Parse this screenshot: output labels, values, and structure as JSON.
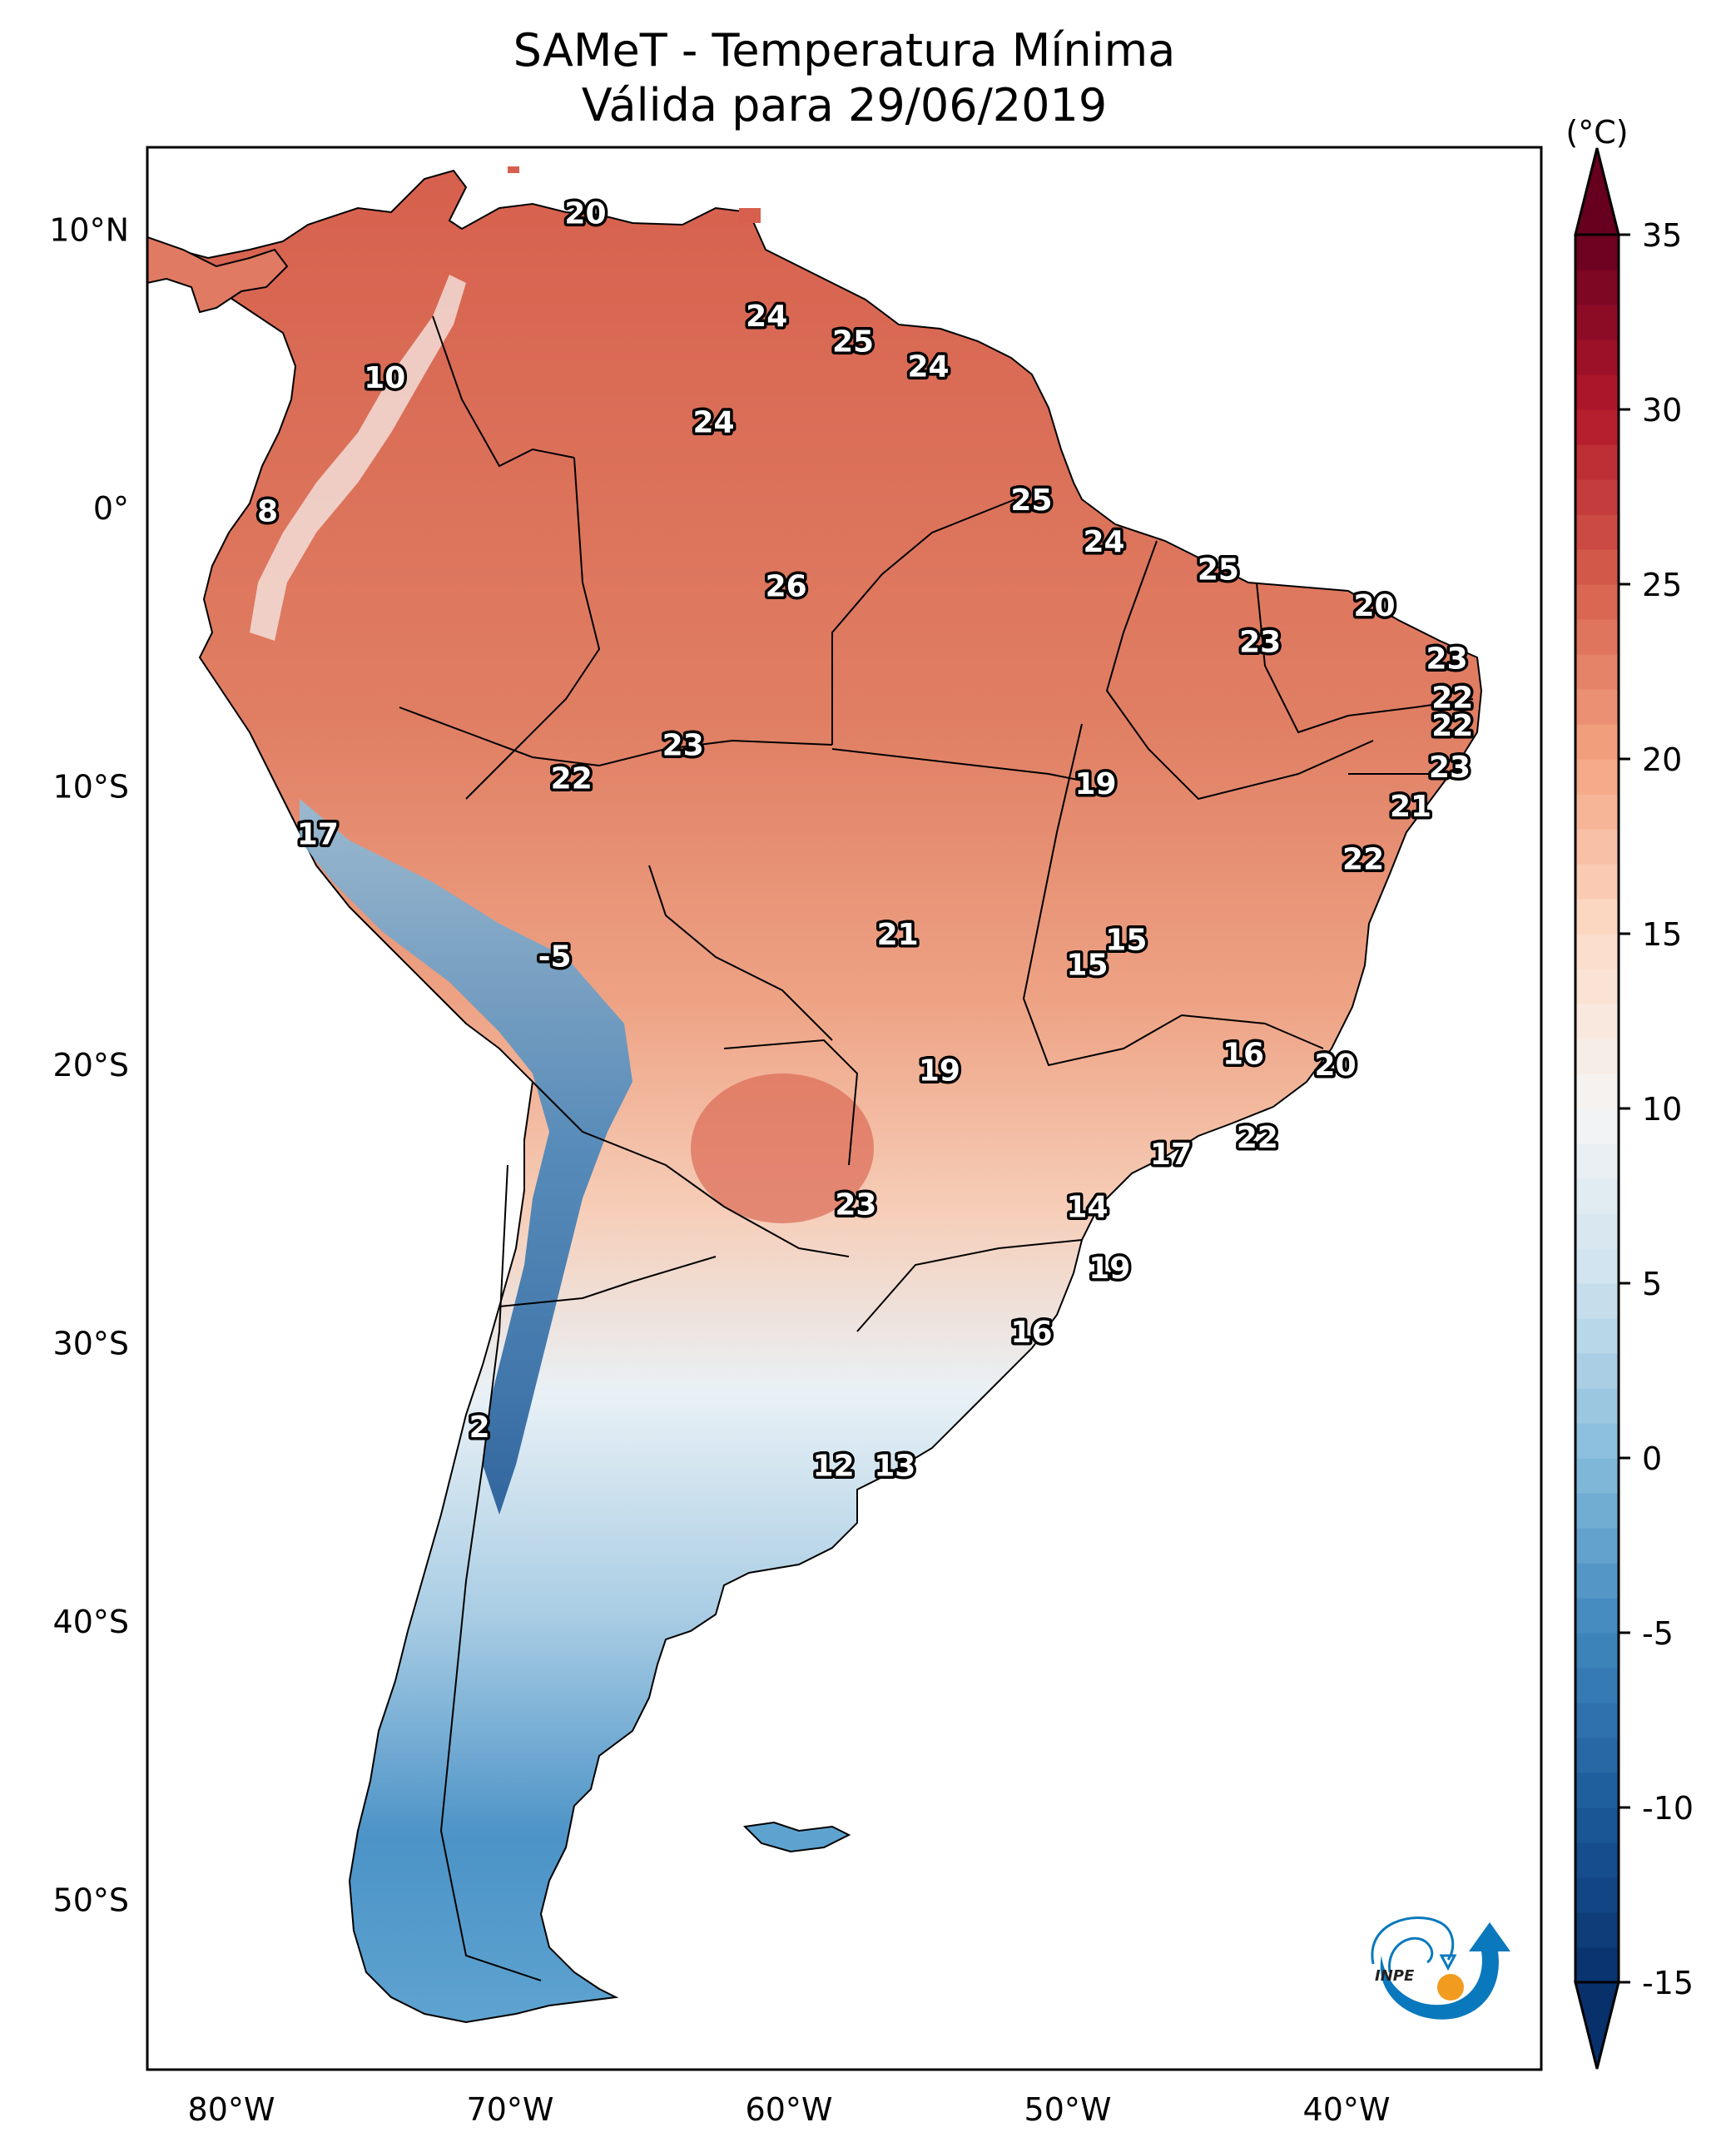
{
  "title": {
    "line1": "SAMeT - Temperatura Mínima",
    "line2": "Válida para 29/06/2019"
  },
  "chart_data": {
    "type": "heatmap",
    "title": "SAMeT - Temperatura Mínima",
    "subtitle": "Válida para 29/06/2019",
    "projection": "PlateCarree",
    "xlim": [
      -83,
      -33
    ],
    "ylim": [
      -56,
      13
    ],
    "x_ticks": [
      -80,
      -70,
      -60,
      -50,
      -40
    ],
    "x_tick_labels": [
      "80°W",
      "70°W",
      "60°W",
      "50°W",
      "40°W"
    ],
    "y_ticks": [
      10,
      0,
      -10,
      -20,
      -30,
      -40,
      -50
    ],
    "y_tick_labels": [
      "10°N",
      "0°",
      "10°S",
      "20°S",
      "30°S",
      "40°S",
      "50°S"
    ],
    "colorbar": {
      "label": "(°C)",
      "min": -15,
      "max": 35,
      "ticks": [
        35,
        30,
        25,
        20,
        15,
        10,
        5,
        0,
        -5,
        -10,
        -15
      ],
      "tick_labels": [
        "35",
        "30",
        "25",
        "20",
        "15",
        "10",
        "5",
        "0",
        "-5",
        "-10",
        "-15"
      ],
      "colormap": "RdBu_r",
      "extend": "both",
      "stops": [
        {
          "v": -15,
          "c": "#08306b"
        },
        {
          "v": -10,
          "c": "#1c5a9a"
        },
        {
          "v": -5,
          "c": "#3f87be"
        },
        {
          "v": 0,
          "c": "#86bcdc"
        },
        {
          "v": 5,
          "c": "#cde2ee"
        },
        {
          "v": 10,
          "c": "#f5f5f5"
        },
        {
          "v": 15,
          "c": "#fcdbc7"
        },
        {
          "v": 20,
          "c": "#f4a582"
        },
        {
          "v": 25,
          "c": "#d6604d"
        },
        {
          "v": 30,
          "c": "#b2182b"
        },
        {
          "v": 35,
          "c": "#67001f"
        }
      ]
    },
    "station_labels": [
      {
        "value": "20",
        "lon": -67.3,
        "lat": 10.6
      },
      {
        "value": "10",
        "lon": -74.5,
        "lat": 4.7
      },
      {
        "value": "8",
        "lon": -78.7,
        "lat": -0.1
      },
      {
        "value": "24",
        "lon": -60.8,
        "lat": 6.9
      },
      {
        "value": "25",
        "lon": -57.7,
        "lat": 6.0
      },
      {
        "value": "24",
        "lon": -55.0,
        "lat": 5.1
      },
      {
        "value": "24",
        "lon": -62.7,
        "lat": 3.1
      },
      {
        "value": "25",
        "lon": -51.3,
        "lat": 0.3
      },
      {
        "value": "26",
        "lon": -60.1,
        "lat": -2.8
      },
      {
        "value": "24",
        "lon": -48.7,
        "lat": -1.2
      },
      {
        "value": "25",
        "lon": -44.6,
        "lat": -2.2
      },
      {
        "value": "20",
        "lon": -39.0,
        "lat": -3.5
      },
      {
        "value": "23",
        "lon": -43.1,
        "lat": -4.8
      },
      {
        "value": "23",
        "lon": -36.4,
        "lat": -5.4
      },
      {
        "value": "22",
        "lon": -36.2,
        "lat": -6.8
      },
      {
        "value": "22",
        "lon": -36.2,
        "lat": -7.8
      },
      {
        "value": "23",
        "lon": -36.3,
        "lat": -9.3
      },
      {
        "value": "21",
        "lon": -37.7,
        "lat": -10.7
      },
      {
        "value": "22",
        "lon": -39.4,
        "lat": -12.6
      },
      {
        "value": "19",
        "lon": -49.0,
        "lat": -9.9
      },
      {
        "value": "23",
        "lon": -63.8,
        "lat": -8.5
      },
      {
        "value": "22",
        "lon": -67.8,
        "lat": -9.7
      },
      {
        "value": "17",
        "lon": -76.9,
        "lat": -11.7
      },
      {
        "value": "-5",
        "lon": -68.4,
        "lat": -16.1
      },
      {
        "value": "21",
        "lon": -56.1,
        "lat": -15.3
      },
      {
        "value": "15",
        "lon": -47.9,
        "lat": -15.5
      },
      {
        "value": "15",
        "lon": -49.3,
        "lat": -16.4
      },
      {
        "value": "16",
        "lon": -43.7,
        "lat": -19.6
      },
      {
        "value": "20",
        "lon": -40.4,
        "lat": -20.0
      },
      {
        "value": "19",
        "lon": -54.6,
        "lat": -20.2
      },
      {
        "value": "22",
        "lon": -43.2,
        "lat": -22.6
      },
      {
        "value": "17",
        "lon": -46.3,
        "lat": -23.2
      },
      {
        "value": "14",
        "lon": -49.3,
        "lat": -25.1
      },
      {
        "value": "23",
        "lon": -57.6,
        "lat": -25.0
      },
      {
        "value": "19",
        "lon": -48.5,
        "lat": -27.3
      },
      {
        "value": "16",
        "lon": -51.3,
        "lat": -29.6
      },
      {
        "value": "2",
        "lon": -71.1,
        "lat": -33.0
      },
      {
        "value": "12",
        "lon": -58.4,
        "lat": -34.4
      },
      {
        "value": "13",
        "lon": -56.2,
        "lat": -34.4
      }
    ]
  },
  "logo": {
    "text": "INPE",
    "colors": {
      "blue": "#0a78bd",
      "orange": "#f29c1f"
    }
  }
}
